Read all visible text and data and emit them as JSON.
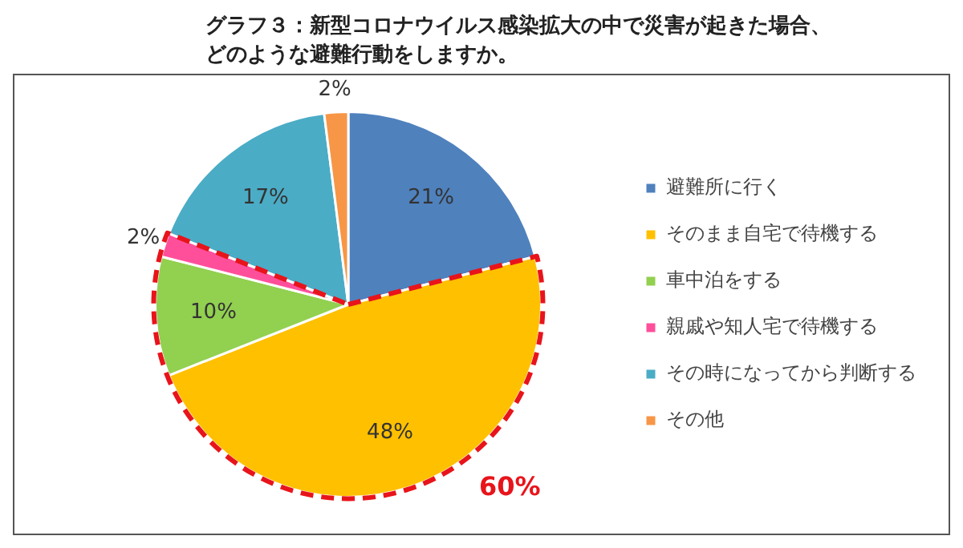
{
  "chart_data": {
    "type": "pie",
    "title": "グラフ３：新型コロナウイルス感染拡大の中で災害が起きた場合、どのような避難行動をしますか。",
    "categories": [
      "避難所に行く",
      "そのまま自宅で待機する",
      "車中泊をする",
      "親戚や知人宅で待機する",
      "その時になってから判断する",
      "その他"
    ],
    "values": [
      21,
      48,
      10,
      2,
      17,
      2
    ],
    "colors": [
      "#4f81bd",
      "#ffc000",
      "#92d050",
      "#ff4f9b",
      "#4bacc6",
      "#f79646"
    ],
    "value_labels": [
      "21%",
      "48%",
      "10%",
      "2%",
      "17%",
      "2%"
    ],
    "legend": "right",
    "annotations": [
      "60%"
    ]
  }
}
